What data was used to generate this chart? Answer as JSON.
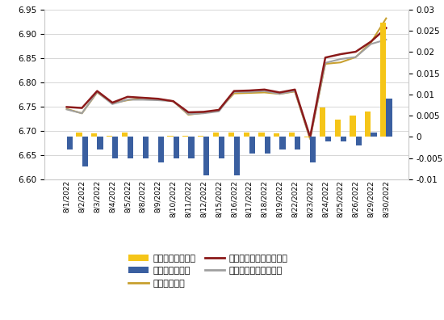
{
  "dates": [
    "8/1/2022",
    "8/2/2022",
    "8/3/2022",
    "8/4/2022",
    "8/5/2022",
    "8/8/2022",
    "8/9/2022",
    "8/10/2022",
    "8/11/2022",
    "8/12/2022",
    "8/15/2022",
    "8/16/2022",
    "8/17/2022",
    "8/18/2022",
    "8/19/2022",
    "8/22/2022",
    "8/23/2022",
    "8/24/2022",
    "8/25/2022",
    "8/26/2022",
    "8/29/2022",
    "8/30/2022"
  ],
  "midpoint_actual": [
    6.745,
    6.736,
    6.779,
    6.757,
    6.763,
    6.768,
    6.765,
    6.761,
    6.733,
    6.737,
    6.743,
    6.777,
    6.778,
    6.779,
    6.776,
    6.781,
    6.683,
    6.838,
    6.841,
    6.852,
    6.882,
    6.932
  ],
  "no_counter_predicted": [
    6.749,
    6.747,
    6.782,
    6.758,
    6.77,
    6.768,
    6.766,
    6.761,
    6.738,
    6.739,
    6.743,
    6.782,
    6.783,
    6.785,
    6.779,
    6.785,
    6.687,
    6.851,
    6.858,
    6.863,
    6.884,
    6.912
  ],
  "counter_predicted": [
    6.744,
    6.736,
    6.78,
    6.755,
    6.764,
    6.764,
    6.763,
    6.761,
    6.734,
    6.736,
    6.74,
    6.78,
    6.78,
    6.782,
    6.776,
    6.782,
    6.684,
    6.84,
    6.848,
    6.852,
    6.879,
    6.888
  ],
  "no_counter_diff": [
    0.0001,
    0.001,
    0.0008,
    0.0003,
    0.001,
    0.0001,
    0.0001,
    0.0002,
    0.0003,
    0.0003,
    0.001,
    0.001,
    0.001,
    0.001,
    0.0008,
    0.001,
    -0.0002,
    0.007,
    0.004,
    0.005,
    0.006,
    0.027
  ],
  "counter_diff": [
    -0.003,
    -0.007,
    -0.003,
    -0.005,
    -0.005,
    -0.005,
    -0.006,
    -0.005,
    -0.005,
    -0.009,
    -0.005,
    -0.009,
    -0.004,
    -0.004,
    -0.003,
    -0.003,
    -0.006,
    -0.001,
    -0.001,
    -0.002,
    0.001,
    0.009
  ],
  "left_ylim": [
    6.6,
    6.95
  ],
  "right_ylim": [
    -0.01,
    0.03
  ],
  "left_yticks": [
    6.6,
    6.65,
    6.7,
    6.75,
    6.8,
    6.85,
    6.9,
    6.95
  ],
  "right_yticks": [
    -0.01,
    -0.005,
    0.0,
    0.005,
    0.01,
    0.015,
    0.02,
    0.025,
    0.03
  ],
  "midpoint_color": "#c8a030",
  "no_counter_color": "#8b1a1a",
  "counter_color": "#a0a0a0",
  "no_counter_bar_color": "#f5c518",
  "counter_bar_color": "#3a5fa0",
  "background_color": "#ffffff",
  "grid_color": "#d0d0d0",
  "tick_fontsize": 7.5,
  "label_fontsize": 6.5,
  "legend_fontsize": 8.0,
  "legend_labels": [
    "不含逆周期的差异",
    "含逆周期的差异",
    "中间价实际值",
    "不含逆周期因子的推测值",
    "含逆周期因子的推测值"
  ]
}
